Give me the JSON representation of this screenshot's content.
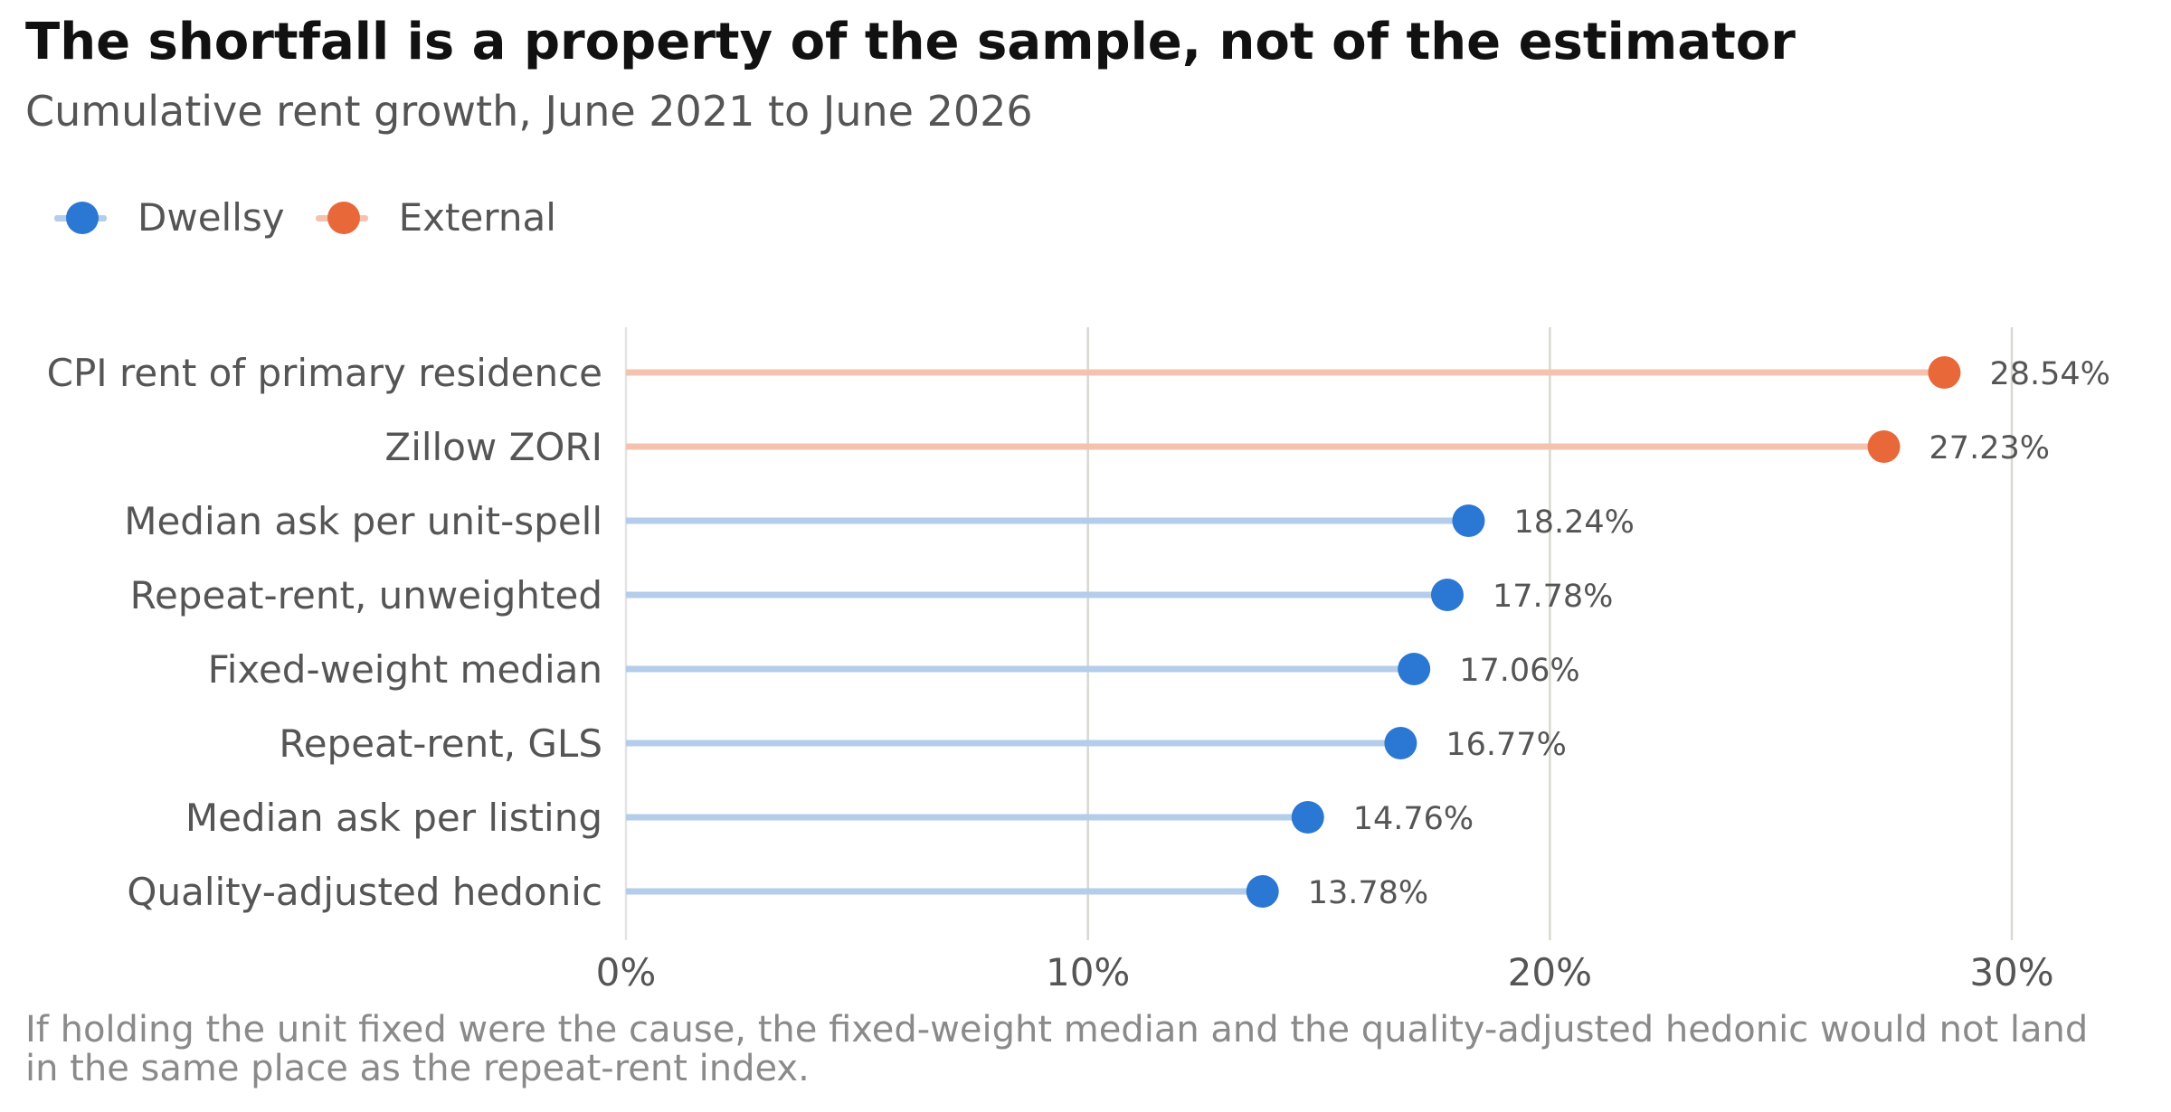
{
  "header": {
    "title": "The shortfall is a property of the sample, not of the estimator",
    "subtitle": "Cumulative rent growth, June 2021 to June 2026"
  },
  "legend": {
    "items": [
      {
        "label": "Dwellsy",
        "color": "#2a77d4",
        "line_color": "#b3cdea"
      },
      {
        "label": "External",
        "color": "#e8683a",
        "line_color": "#f4c3b0"
      }
    ]
  },
  "chart_data": {
    "type": "lollipop",
    "categories": [
      "CPI rent of primary residence",
      "Zillow ZORI",
      "Median ask per unit-spell",
      "Repeat-rent, unweighted",
      "Fixed-weight median",
      "Repeat-rent, GLS",
      "Median ask per listing",
      "Quality-adjusted hedonic"
    ],
    "values": [
      28.54,
      27.23,
      18.24,
      17.78,
      17.06,
      16.77,
      14.76,
      13.78
    ],
    "groups": [
      "External",
      "External",
      "Dwellsy",
      "Dwellsy",
      "Dwellsy",
      "Dwellsy",
      "Dwellsy",
      "Dwellsy"
    ],
    "value_labels": [
      "28.54%",
      "27.23%",
      "18.24%",
      "17.78%",
      "17.06%",
      "16.77%",
      "14.76%",
      "13.78%"
    ],
    "xlim": [
      0,
      30
    ],
    "xticks": [
      0,
      10,
      20,
      30
    ],
    "xtick_labels": [
      "0%",
      "10%",
      "20%",
      "30%"
    ],
    "grid": "vertical",
    "legend_position": "top-left"
  },
  "caption": "If holding the unit fixed were the cause, the fixed-weight median and the quality-adjusted hedonic would not land in the same place as the repeat-rent index."
}
